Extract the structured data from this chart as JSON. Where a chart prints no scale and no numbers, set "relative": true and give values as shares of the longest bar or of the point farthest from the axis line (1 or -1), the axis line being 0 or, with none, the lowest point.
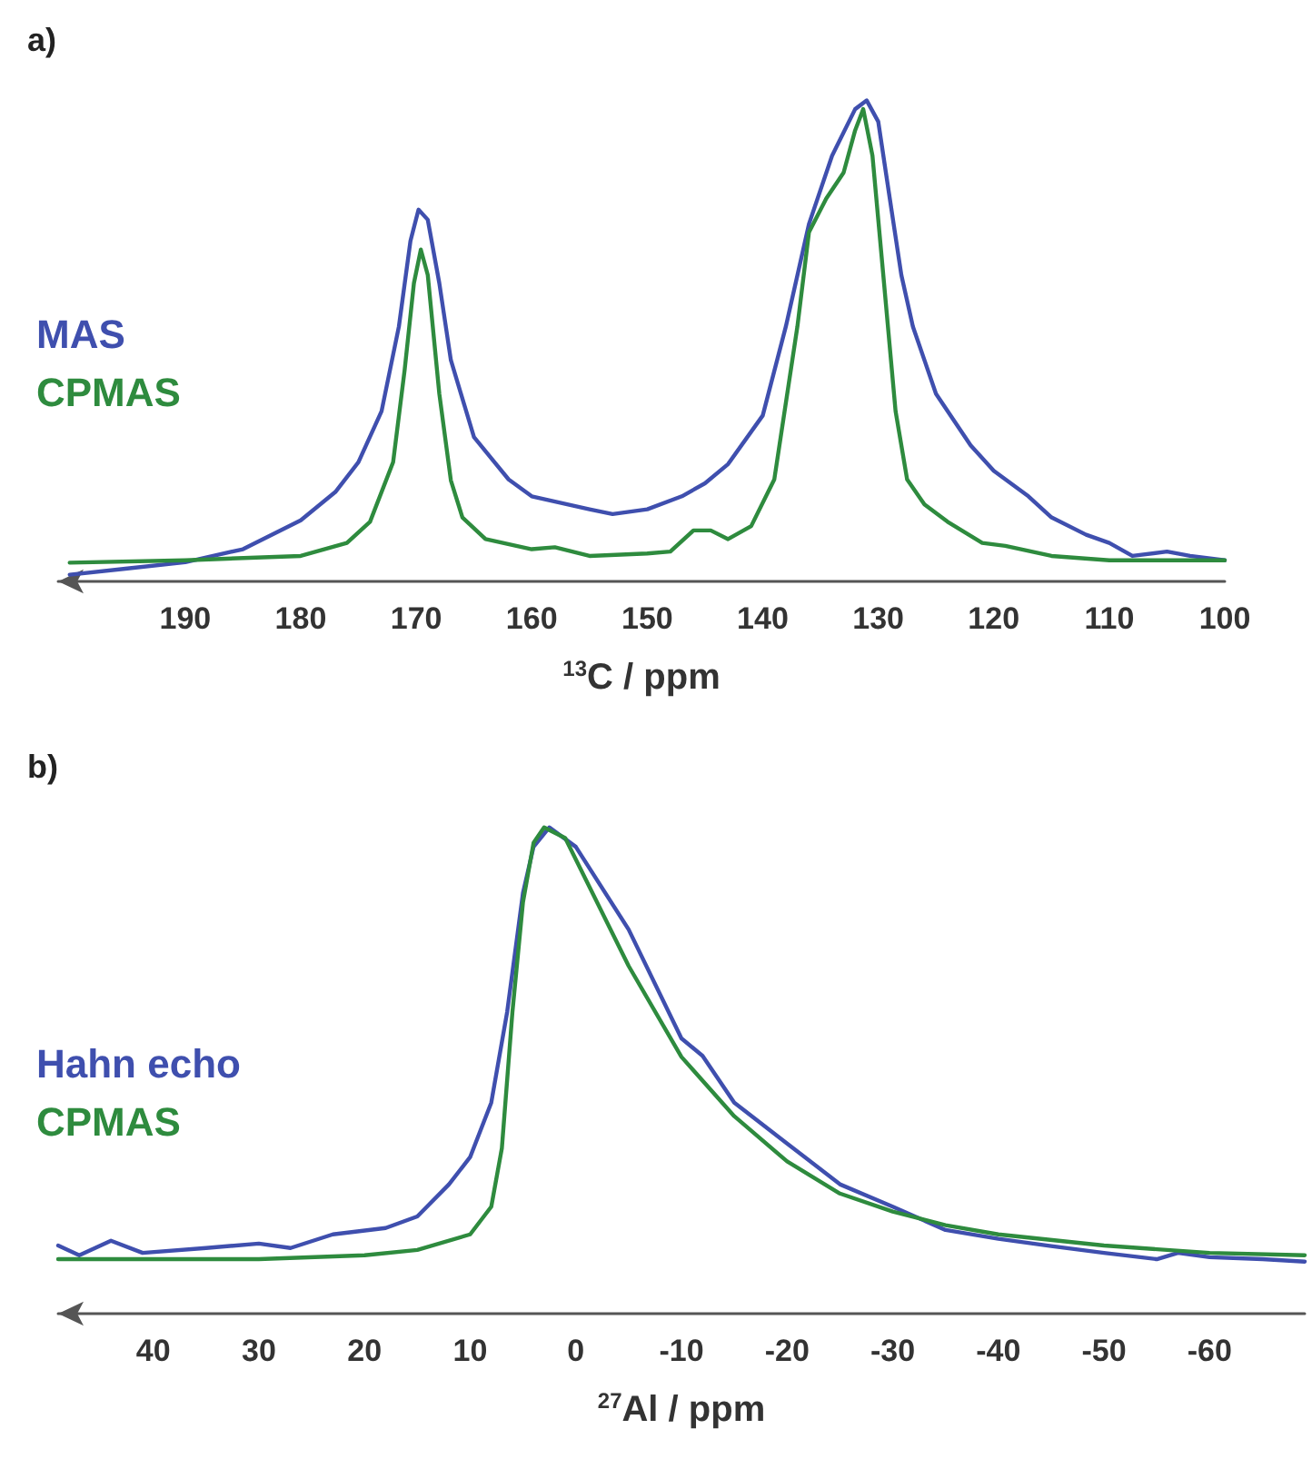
{
  "chart_data": [
    {
      "type": "line",
      "title": "a)",
      "xlabel": "$^{13}$C / ppm",
      "relative": true,
      "legend": "left",
      "xlim": [
        201,
        100
      ],
      "xticks": [
        190,
        180,
        170,
        160,
        150,
        140,
        130,
        120,
        110,
        100
      ],
      "grid": false,
      "marker": "none",
      "line_style": "solid",
      "series": [
        {
          "name": "MAS",
          "color": "#3f4fae",
          "x": [
            200,
            195,
            190,
            185,
            180,
            177,
            175,
            173,
            171.5,
            170.5,
            169.8,
            169,
            168,
            167,
            165,
            162,
            160,
            155,
            153,
            150,
            147,
            145,
            143,
            140,
            138,
            136,
            134,
            132,
            131,
            130,
            129,
            128,
            127,
            125,
            122,
            120,
            117,
            115,
            112,
            110,
            108,
            105,
            103,
            100
          ],
          "values": [
            0.014,
            0.027,
            0.04,
            0.067,
            0.127,
            0.186,
            0.248,
            0.354,
            0.53,
            0.708,
            0.773,
            0.752,
            0.62,
            0.46,
            0.3,
            0.212,
            0.177,
            0.15,
            0.14,
            0.15,
            0.177,
            0.204,
            0.244,
            0.345,
            0.53,
            0.743,
            0.885,
            0.982,
            1,
            0.956,
            0.796,
            0.637,
            0.53,
            0.39,
            0.283,
            0.23,
            0.177,
            0.133,
            0.097,
            0.08,
            0.053,
            0.062,
            0.053,
            0.044
          ]
        },
        {
          "name": "CPMAS",
          "color": "#2e8b3e",
          "x": [
            200,
            190,
            180,
            176,
            174,
            172,
            171,
            170.2,
            169.6,
            169,
            168,
            167,
            166,
            164,
            160,
            158,
            155,
            150,
            148,
            146,
            144.5,
            143,
            141,
            139,
            137,
            136,
            134.5,
            133,
            132,
            131.3,
            130.5,
            129.5,
            128.5,
            127.5,
            126,
            124,
            121,
            119,
            115,
            110,
            100
          ],
          "values": [
            0.039,
            0.044,
            0.053,
            0.08,
            0.124,
            0.248,
            0.44,
            0.62,
            0.69,
            0.637,
            0.39,
            0.21,
            0.133,
            0.088,
            0.067,
            0.071,
            0.053,
            0.058,
            0.062,
            0.106,
            0.106,
            0.088,
            0.115,
            0.212,
            0.53,
            0.726,
            0.796,
            0.85,
            0.938,
            0.982,
            0.885,
            0.62,
            0.354,
            0.212,
            0.16,
            0.124,
            0.08,
            0.074,
            0.053,
            0.044,
            0.044
          ]
        }
      ]
    },
    {
      "type": "line",
      "title": "b)",
      "xlabel": "$^{27}$Al / ppm",
      "relative": true,
      "legend": "left",
      "xlim": [
        49,
        -69
      ],
      "xticks": [
        40,
        30,
        20,
        10,
        0,
        -10,
        -20,
        -30,
        -40,
        -50,
        -60
      ],
      "grid": false,
      "marker": "none",
      "line_style": "solid",
      "series": [
        {
          "name": "Hahn echo",
          "color": "#3f4fae",
          "x": [
            49,
            47,
            44,
            41,
            35,
            30,
            27,
            23,
            18,
            15,
            12,
            10,
            8,
            6.5,
            5,
            4,
            2.5,
            0,
            -5,
            -10,
            -12,
            -15,
            -20,
            -25,
            -30,
            -35,
            -40,
            -45,
            -50,
            -55,
            -57,
            -60,
            -65,
            -69
          ],
          "values": [
            0.14,
            0.12,
            0.15,
            0.125,
            0.135,
            0.144,
            0.135,
            0.163,
            0.176,
            0.2,
            0.266,
            0.322,
            0.434,
            0.62,
            0.865,
            0.96,
            1,
            0.96,
            0.79,
            0.566,
            0.53,
            0.434,
            0.35,
            0.266,
            0.22,
            0.172,
            0.154,
            0.139,
            0.125,
            0.112,
            0.125,
            0.116,
            0.112,
            0.107
          ]
        },
        {
          "name": "CPMAS",
          "color": "#2e8b3e",
          "x": [
            49,
            40,
            30,
            20,
            15,
            10,
            8,
            7,
            6,
            5,
            4,
            3,
            1,
            -5,
            -10,
            -15,
            -20,
            -25,
            -30,
            -35,
            -40,
            -50,
            -60,
            -69
          ],
          "values": [
            0.112,
            0.112,
            0.112,
            0.12,
            0.131,
            0.163,
            0.22,
            0.34,
            0.62,
            0.846,
            0.968,
            1,
            0.978,
            0.715,
            0.528,
            0.406,
            0.313,
            0.247,
            0.21,
            0.182,
            0.163,
            0.14,
            0.125,
            0.12
          ]
        }
      ]
    }
  ]
}
